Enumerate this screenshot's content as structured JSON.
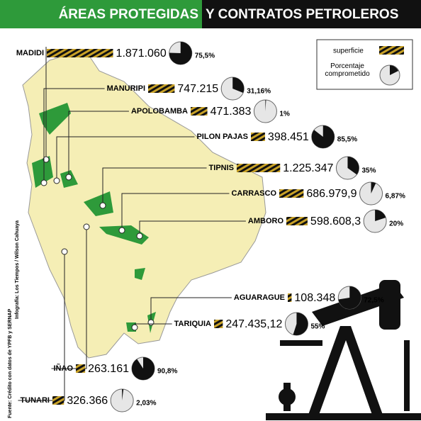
{
  "header": {
    "title_green": "ÁREAS PROTEGIDAS",
    "title_black": "Y CONTRATOS PETROLEROS"
  },
  "legend": {
    "surface": "superficie",
    "percent": "Porcentaje comprometido"
  },
  "areas": [
    {
      "name": "MADIDI",
      "surface": 1871060,
      "surface_label": "1.871.060",
      "percent": 75.5,
      "percent_label": "75,5%"
    },
    {
      "name": "MANURIPI",
      "surface": 747215,
      "surface_label": "747.215",
      "percent": 31.16,
      "percent_label": "31,16%"
    },
    {
      "name": "APOLOBAMBA",
      "surface": 471383,
      "surface_label": "471.383",
      "percent": 1,
      "percent_label": "1%"
    },
    {
      "name": "PILON PAJAS",
      "surface": 398451,
      "surface_label": "398.451",
      "percent": 85.5,
      "percent_label": "85,5%"
    },
    {
      "name": "TIPNIS",
      "surface": 1225347,
      "surface_label": "1.225.347",
      "percent": 35,
      "percent_label": "35%"
    },
    {
      "name": "CARRASCO",
      "surface": 686979.9,
      "surface_label": "686.979,9",
      "percent": 6.87,
      "percent_label": "6,87%"
    },
    {
      "name": "AMBORO",
      "surface": 598608.3,
      "surface_label": "598.608,3",
      "percent": 20,
      "percent_label": "20%"
    },
    {
      "name": "AGUARAGUE",
      "surface": 108348,
      "surface_label": "108.348",
      "percent": 72.5,
      "percent_label": "72,5%"
    },
    {
      "name": "TARIQUIA",
      "surface": 247435.12,
      "surface_label": "247.435,12",
      "percent": 55,
      "percent_label": "55%"
    },
    {
      "name": "IÑAO",
      "surface": 263161,
      "surface_label": "263.161",
      "percent": 90.8,
      "percent_label": "90,8%"
    },
    {
      "name": "TUNARI",
      "surface": 326366,
      "surface_label": "326.366",
      "percent": 2.03,
      "percent_label": "2,03%"
    }
  ],
  "credits": {
    "source": "Fuente: Crédito con datos de YPFB y SERNAP",
    "author": "Infografía: Los Tiempos / Wilson Cahuaya"
  }
}
